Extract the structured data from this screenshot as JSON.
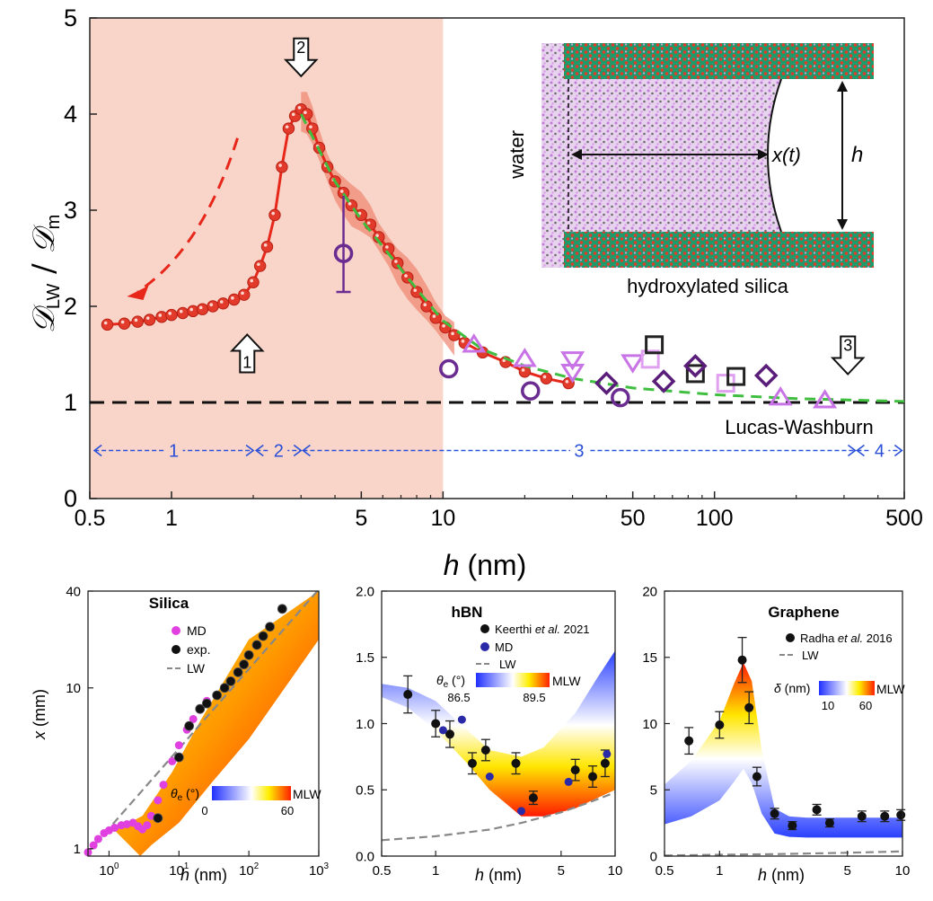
{
  "chart_data": [
    {
      "type": "line",
      "id": "main",
      "xscale": "log",
      "xlim": [
        0.5,
        500
      ],
      "ylim": [
        0,
        5
      ],
      "xticks": [
        0.5,
        1,
        5,
        10,
        50,
        100,
        500
      ],
      "xtick_labels": [
        "0.5",
        "1",
        "5",
        "10",
        "50",
        "100",
        "500"
      ],
      "yticks": [
        0,
        1,
        2,
        3,
        4,
        5
      ],
      "ytick_labels": [
        "0",
        "1",
        "2",
        "3",
        "4",
        "5"
      ],
      "xlabel": "h (nm)",
      "xlabel_var": "h",
      "xlabel_unit": " (nm)",
      "ylabel": "𝒟LW / 𝒟m",
      "ylabel_parts": {
        "d1": "𝒟",
        "s1": "LW",
        "slash": " / ",
        "d2": "𝒟",
        "s2": "m"
      },
      "shaded_region": {
        "x0": 0.5,
        "x1": 10,
        "color": "#f9d4c8"
      },
      "reference_line": {
        "y": 1,
        "label": "Lucas-Washburn"
      },
      "series": [
        {
          "name": "MD",
          "color": "#e8271b",
          "x": [
            0.58,
            0.67,
            0.75,
            0.83,
            0.92,
            1.0,
            1.1,
            1.2,
            1.3,
            1.42,
            1.55,
            1.7,
            1.85,
            2.0,
            2.12,
            2.25,
            2.4,
            2.55,
            2.7,
            2.85,
            3.0,
            3.15,
            3.3,
            3.5,
            3.75,
            4.0,
            4.3,
            4.6,
            5.0,
            5.4,
            5.8,
            6.3,
            6.8,
            7.4,
            8.0,
            8.7,
            9.4,
            10.2,
            11.0,
            12.0,
            14.0,
            17.0,
            20.0,
            24.0,
            29.0
          ],
          "y": [
            1.81,
            1.82,
            1.84,
            1.86,
            1.89,
            1.91,
            1.93,
            1.95,
            1.97,
            2.0,
            2.03,
            2.07,
            2.12,
            2.25,
            2.42,
            2.62,
            2.95,
            3.45,
            3.85,
            3.98,
            4.05,
            4.0,
            3.85,
            3.65,
            3.45,
            3.3,
            3.18,
            3.05,
            2.95,
            2.85,
            2.72,
            2.6,
            2.45,
            2.3,
            2.15,
            2.0,
            1.88,
            1.78,
            1.7,
            1.62,
            1.52,
            1.42,
            1.32,
            1.25,
            1.2
          ]
        },
        {
          "name": "fit",
          "style": "dashed",
          "color": "#3fbe3f",
          "x": [
            3.0,
            4.0,
            5.0,
            6.5,
            8.0,
            10.0,
            14.0,
            20.0,
            30.0,
            50.0,
            100.0,
            200.0,
            500.0
          ],
          "y": [
            4.0,
            3.3,
            2.9,
            2.5,
            2.18,
            1.85,
            1.55,
            1.38,
            1.25,
            1.15,
            1.08,
            1.04,
            1.01
          ]
        }
      ],
      "experimental_points": [
        {
          "marker": "circle",
          "color": "#6a2c91",
          "x": 4.3,
          "y": 2.55
        },
        {
          "marker": "circle",
          "color": "#6a2c91",
          "x": 10.5,
          "y": 1.35
        },
        {
          "marker": "circle",
          "color": "#6a2c91",
          "x": 21.0,
          "y": 1.12
        },
        {
          "marker": "circle",
          "color": "#6a2c91",
          "x": 45.0,
          "y": 1.05
        },
        {
          "marker": "triangle-up",
          "color": "#c873e6",
          "x": 13.0,
          "y": 1.6
        },
        {
          "marker": "triangle-up",
          "color": "#c873e6",
          "x": 20.0,
          "y": 1.45
        },
        {
          "marker": "triangle-up",
          "color": "#c873e6",
          "x": 175.0,
          "y": 1.05
        },
        {
          "marker": "triangle-up",
          "color": "#c873e6",
          "x": 255.0,
          "y": 1.02
        },
        {
          "marker": "triangle-down",
          "color": "#c873e6",
          "x": 30.0,
          "y": 1.45
        },
        {
          "marker": "triangle-down",
          "color": "#c873e6",
          "x": 30.0,
          "y": 1.32
        },
        {
          "marker": "triangle-down",
          "color": "#c873e6",
          "x": 50.0,
          "y": 1.42
        },
        {
          "marker": "square",
          "color": "#e0a0f0",
          "x": 58.0,
          "y": 1.45
        },
        {
          "marker": "square",
          "color": "#e0a0f0",
          "x": 110.0,
          "y": 1.2
        },
        {
          "marker": "square",
          "color": "#222222",
          "x": 60.0,
          "y": 1.6
        },
        {
          "marker": "square",
          "color": "#222222",
          "x": 85.0,
          "y": 1.3
        },
        {
          "marker": "square",
          "color": "#222222",
          "x": 120.0,
          "y": 1.27
        },
        {
          "marker": "diamond",
          "color": "#5a1d7a",
          "x": 40.0,
          "y": 1.2
        },
        {
          "marker": "diamond",
          "color": "#5a1d7a",
          "x": 65.0,
          "y": 1.22
        },
        {
          "marker": "diamond",
          "color": "#5a1d7a",
          "x": 85.0,
          "y": 1.38
        },
        {
          "marker": "diamond",
          "color": "#5a1d7a",
          "x": 155.0,
          "y": 1.28
        }
      ],
      "arrows": [
        {
          "label": "1",
          "x": 1.9,
          "y": 1.5,
          "direction": "up"
        },
        {
          "label": "2",
          "x": 3.0,
          "y": 4.6,
          "direction": "down"
        },
        {
          "label": "3",
          "x": 310.0,
          "y": 1.5,
          "direction": "down"
        }
      ],
      "regimes": [
        {
          "label": "1",
          "x0": 0.52,
          "x1": 2.0
        },
        {
          "label": "2",
          "x0": 2.05,
          "x1": 3.0
        },
        {
          "label": "3",
          "x0": 3.05,
          "x1": 330.0
        },
        {
          "label": "4",
          "x0": 335.0,
          "x1": 490.0
        }
      ],
      "inset": {
        "left_label": "water",
        "x_label": "x(t)",
        "h_label": "h",
        "bottom_label": "hydroxylated silica"
      }
    },
    {
      "type": "line",
      "id": "silica",
      "title": "Silica",
      "xscale": "log",
      "yscale": "log",
      "xlim": [
        0.5,
        1000
      ],
      "ylim": [
        0.9,
        40
      ],
      "xticks": [
        1,
        10,
        100,
        1000
      ],
      "xtick_base": "10",
      "xtick_exps": [
        "0",
        "1",
        "2",
        "3"
      ],
      "yticks": [
        1,
        10,
        40
      ],
      "ytick_labels": [
        "1",
        "10",
        "40"
      ],
      "xlabel": "h (nm)",
      "xlabel_var": "h",
      "xlabel_unit": " (nm)",
      "ylabel": "x (mm)",
      "ylabel_var": "x",
      "ylabel_unit": " (mm)",
      "legend": [
        {
          "label": "MD",
          "marker": "circle",
          "color": "#e040e0"
        },
        {
          "label": "exp.",
          "marker": "circle",
          "color": "#111111"
        },
        {
          "label": "LW",
          "marker": "dash",
          "color": "#888888"
        }
      ],
      "colorbar": {
        "label": "θe (°)",
        "label_var": "θ",
        "label_sub": "e",
        "label_unit": " (°)",
        "min_label": "0",
        "max_label": "60",
        "end_label": "MLW"
      },
      "series": [
        {
          "name": "MD",
          "x": [
            0.5,
            0.6,
            0.7,
            0.85,
            1.0,
            1.2,
            1.5,
            1.8,
            2.2,
            2.6,
            3.0,
            3.5,
            4.0,
            5.0,
            6.0,
            8.0,
            10.0,
            13.0,
            16.0,
            20.0,
            25.0
          ],
          "y": [
            0.95,
            1.05,
            1.15,
            1.25,
            1.3,
            1.35,
            1.4,
            1.42,
            1.45,
            1.38,
            1.32,
            1.4,
            1.6,
            2.0,
            2.5,
            3.5,
            4.4,
            5.5,
            6.4,
            7.3,
            8.3
          ]
        },
        {
          "name": "exp.",
          "x": [
            5.0,
            10.0,
            14.0,
            20.0,
            25.0,
            35.0,
            45.0,
            55.0,
            70.0,
            85.0,
            100.0,
            130.0,
            160.0,
            200.0,
            300.0
          ],
          "y": [
            1.55,
            3.7,
            5.8,
            7.4,
            8.0,
            9.0,
            10.0,
            11.0,
            12.5,
            14.0,
            16.0,
            18.5,
            21.0,
            24.0,
            31.0
          ]
        },
        {
          "name": "LW",
          "x": [
            0.5,
            1000.0
          ],
          "y": [
            0.95,
            41.0
          ]
        }
      ]
    },
    {
      "type": "line",
      "id": "hbn",
      "title": "hBN",
      "xscale": "log",
      "xlim": [
        0.5,
        10
      ],
      "ylim": [
        0,
        2.0
      ],
      "xticks": [
        0.5,
        1,
        5,
        10
      ],
      "xtick_labels": [
        "0.5",
        "1",
        "5",
        "10"
      ],
      "yticks": [
        0,
        0.5,
        1.0,
        1.5,
        2.0
      ],
      "ytick_labels": [
        "0.0",
        "0.5",
        "1.0",
        "1.5",
        "2.0"
      ],
      "xlabel": "h (nm)",
      "xlabel_var": "h",
      "xlabel_unit": " (nm)",
      "legend": [
        {
          "label": "Keerthi et al. 2021",
          "marker": "circle",
          "color": "#111111",
          "parts": [
            "Keerthi ",
            "et al.",
            " 2021"
          ]
        },
        {
          "label": "MD",
          "marker": "circle",
          "color": "#2a2aa8"
        },
        {
          "label": "LW",
          "marker": "dash",
          "color": "#888888"
        }
      ],
      "colorbar": {
        "label": "θe (°)",
        "label_var": "θ",
        "label_sub": "e",
        "label_unit": " (°)",
        "min_label": "86.5",
        "max_label": "89.5",
        "end_label": "MLW"
      },
      "series": [
        {
          "name": "Keerthi et al. 2021",
          "x": [
            0.7,
            1.0,
            1.2,
            1.6,
            1.9,
            2.8,
            3.5,
            6.0,
            7.5,
            8.8
          ],
          "y": [
            1.22,
            1.0,
            0.92,
            0.7,
            0.8,
            0.7,
            0.44,
            0.65,
            0.6,
            0.7
          ],
          "yerr": [
            0.14,
            0.1,
            0.1,
            0.08,
            0.08,
            0.08,
            0.05,
            0.08,
            0.08,
            0.1
          ]
        },
        {
          "name": "MD",
          "x": [
            1.1,
            1.4,
            2.0,
            3.0,
            5.5,
            9.0
          ],
          "y": [
            0.95,
            1.03,
            0.6,
            0.34,
            0.56,
            0.77
          ]
        },
        {
          "name": "LW",
          "x": [
            0.5,
            1.0,
            2.0,
            3.0,
            5.0,
            7.0,
            10.0
          ],
          "y": [
            0.12,
            0.15,
            0.2,
            0.25,
            0.33,
            0.4,
            0.48
          ]
        },
        {
          "name": "band-upper",
          "x": [
            0.5,
            0.7,
            1.0,
            1.5,
            2.0,
            3.0,
            4.0,
            6.0,
            8.0,
            10.0
          ],
          "y": [
            1.3,
            1.27,
            1.17,
            0.95,
            0.8,
            0.75,
            0.82,
            1.08,
            1.35,
            1.55
          ]
        },
        {
          "name": "band-lower",
          "x": [
            0.5,
            0.7,
            1.0,
            1.5,
            2.0,
            3.0,
            4.0,
            6.0,
            8.0,
            10.0
          ],
          "y": [
            1.2,
            1.12,
            0.95,
            0.7,
            0.5,
            0.3,
            0.3,
            0.36,
            0.44,
            0.5
          ]
        }
      ]
    },
    {
      "type": "line",
      "id": "graphene",
      "title": "Graphene",
      "xscale": "log",
      "xlim": [
        0.5,
        10
      ],
      "ylim": [
        0,
        20
      ],
      "xticks": [
        0.5,
        1,
        5,
        10
      ],
      "xtick_labels": [
        "0.5",
        "1",
        "5",
        "10"
      ],
      "yticks": [
        0,
        5,
        10,
        15,
        20
      ],
      "ytick_labels": [
        "0",
        "5",
        "10",
        "15",
        "20"
      ],
      "xlabel": "h (nm)",
      "xlabel_var": "h",
      "xlabel_unit": " (nm)",
      "legend": [
        {
          "label": "Radha et al. 2016",
          "marker": "circle",
          "color": "#111111",
          "parts": [
            "Radha ",
            "et al.",
            " 2016"
          ]
        },
        {
          "label": "LW",
          "marker": "dash",
          "color": "#888888"
        }
      ],
      "colorbar": {
        "label": "δ (nm)",
        "label_var": "δ",
        "label_sub": "",
        "label_unit": " (nm)",
        "min_label": "10",
        "max_label": "60",
        "end_label": "MLW"
      },
      "series": [
        {
          "name": "Radha et al. 2016",
          "x": [
            0.68,
            1.0,
            1.33,
            1.45,
            1.6,
            2.0,
            2.5,
            3.4,
            4.0,
            6.0,
            8.0,
            9.8
          ],
          "y": [
            8.7,
            9.9,
            14.8,
            11.2,
            6.0,
            3.2,
            2.3,
            3.5,
            2.5,
            3.0,
            3.0,
            3.1
          ],
          "yerr": [
            1.0,
            1.0,
            1.7,
            1.2,
            0.7,
            0.4,
            0.3,
            0.4,
            0.3,
            0.4,
            0.4,
            0.4
          ]
        },
        {
          "name": "LW",
          "x": [
            0.5,
            1.0,
            2.0,
            5.0,
            10.0
          ],
          "y": [
            0.05,
            0.1,
            0.15,
            0.25,
            0.35
          ]
        },
        {
          "name": "band-upper",
          "x": [
            0.5,
            0.7,
            1.0,
            1.2,
            1.35,
            1.5,
            1.7,
            2.0,
            2.4,
            3.0,
            5.0,
            10.0
          ],
          "y": [
            5.4,
            7.2,
            10.2,
            13.0,
            14.6,
            13.2,
            8.0,
            3.6,
            3.0,
            2.9,
            2.9,
            2.9
          ]
        },
        {
          "name": "band-lower",
          "x": [
            0.5,
            0.7,
            1.0,
            1.2,
            1.35,
            1.5,
            1.7,
            2.0,
            2.4,
            3.0,
            5.0,
            10.0
          ],
          "y": [
            2.4,
            3.0,
            4.2,
            5.6,
            6.6,
            5.5,
            3.2,
            1.7,
            1.45,
            1.4,
            1.4,
            1.4
          ]
        }
      ]
    }
  ]
}
